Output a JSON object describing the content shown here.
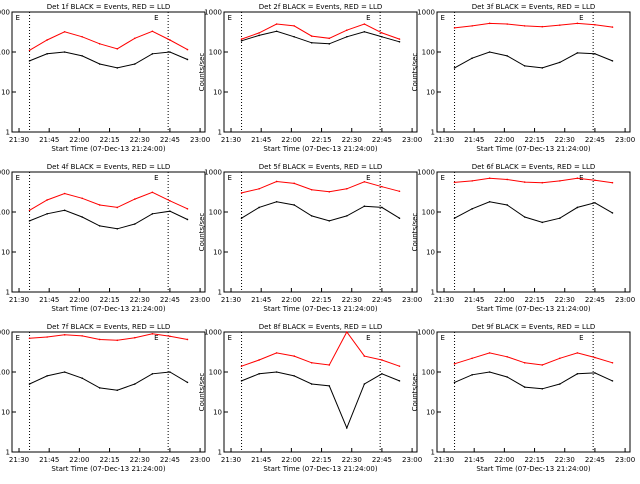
{
  "chart_data": [
    {
      "type": "line",
      "title": "Det 1f BLACK = Events, RED = LLD",
      "xlabel": "Start Time (07-Dec-13 21:24:00)",
      "ylabel": "Counts/sec",
      "x_ticks": [
        "21:30",
        "21:45",
        "22:00",
        "22:15",
        "22:30",
        "22:45",
        "23:00"
      ],
      "y_ticks": [
        "1",
        "10",
        "100",
        "1000"
      ],
      "y_scale": "log",
      "ylim": [
        1,
        1000
      ],
      "xlim_min": [
        0,
        100
      ],
      "markers": [
        "E",
        "E"
      ],
      "series": [
        {
          "color": "#000000",
          "x": [
            0,
            10,
            20,
            30,
            40,
            50,
            60,
            70,
            80,
            90
          ],
          "y": [
            60,
            90,
            100,
            80,
            50,
            40,
            50,
            90,
            100,
            65
          ]
        },
        {
          "color": "#ff0000",
          "x": [
            0,
            10,
            20,
            30,
            40,
            50,
            60,
            70,
            80,
            90
          ],
          "y": [
            110,
            200,
            320,
            240,
            160,
            120,
            220,
            330,
            200,
            115
          ]
        }
      ]
    },
    {
      "type": "line",
      "title": "Det 2f BLACK = Events, RED = LLD",
      "xlabel": "Start Time (07-Dec-13 21:24:00)",
      "ylabel": "Counts/sec",
      "x_ticks": [
        "21:30",
        "21:45",
        "22:00",
        "22:15",
        "22:30",
        "22:45",
        "23:00"
      ],
      "y_ticks": [
        "1",
        "10",
        "100",
        "1000"
      ],
      "markers": [
        "E",
        "E"
      ],
      "series": [
        {
          "color": "#000000",
          "x": [
            0,
            10,
            20,
            30,
            40,
            50,
            60,
            70,
            80,
            90
          ],
          "y": [
            190,
            260,
            330,
            240,
            170,
            160,
            240,
            320,
            240,
            180
          ]
        },
        {
          "color": "#ff0000",
          "x": [
            0,
            10,
            20,
            30,
            40,
            50,
            60,
            70,
            80,
            90
          ],
          "y": [
            210,
            300,
            500,
            450,
            250,
            220,
            350,
            500,
            300,
            210
          ]
        }
      ]
    },
    {
      "type": "line",
      "title": "Det 3f BLACK = Events, RED = LLD",
      "xlabel": "Start Time (07-Dec-13 21:24:00)",
      "ylabel": "Counts/sec",
      "x_ticks": [
        "21:30",
        "21:45",
        "22:00",
        "22:15",
        "22:30",
        "22:45",
        "23:00"
      ],
      "y_ticks": [
        "1",
        "10",
        "100",
        "1000"
      ],
      "markers": [
        "E",
        "E"
      ],
      "series": [
        {
          "color": "#000000",
          "x": [
            0,
            10,
            20,
            30,
            40,
            50,
            60,
            70,
            80,
            90
          ],
          "y": [
            40,
            70,
            100,
            80,
            45,
            40,
            55,
            95,
            90,
            60
          ]
        },
        {
          "color": "#ff0000",
          "x": [
            0,
            10,
            20,
            30,
            40,
            50,
            60,
            70,
            80,
            90
          ],
          "y": [
            400,
            450,
            520,
            500,
            450,
            430,
            470,
            520,
            480,
            420
          ]
        }
      ]
    },
    {
      "type": "line",
      "title": "Det 4f BLACK = Events, RED = LLD",
      "xlabel": "Start Time (07-Dec-13 21:24:00)",
      "ylabel": "Counts/sec",
      "x_ticks": [
        "21:30",
        "21:45",
        "22:00",
        "22:15",
        "22:30",
        "22:45",
        "23:00"
      ],
      "y_ticks": [
        "1",
        "10",
        "100",
        "1000"
      ],
      "markers": [
        "E",
        "E"
      ],
      "series": [
        {
          "color": "#000000",
          "x": [
            0,
            10,
            20,
            30,
            40,
            50,
            60,
            70,
            80,
            90
          ],
          "y": [
            60,
            90,
            110,
            75,
            45,
            38,
            50,
            90,
            105,
            65
          ]
        },
        {
          "color": "#ff0000",
          "x": [
            0,
            10,
            20,
            30,
            40,
            50,
            60,
            70,
            80,
            90
          ],
          "y": [
            110,
            200,
            290,
            220,
            150,
            130,
            210,
            310,
            190,
            120
          ]
        }
      ]
    },
    {
      "type": "line",
      "title": "Det 5f BLACK = Events, RED = LLD",
      "xlabel": "Start Time (07-Dec-13 21:24:00)",
      "ylabel": "Counts/sec",
      "x_ticks": [
        "21:30",
        "21:45",
        "22:00",
        "22:15",
        "22:30",
        "22:45",
        "23:00"
      ],
      "y_ticks": [
        "1",
        "10",
        "100",
        "1000"
      ],
      "markers": [
        "E",
        "E"
      ],
      "series": [
        {
          "color": "#000000",
          "x": [
            0,
            10,
            20,
            30,
            40,
            50,
            60,
            70,
            80,
            90
          ],
          "y": [
            70,
            130,
            180,
            150,
            80,
            60,
            80,
            140,
            130,
            70
          ]
        },
        {
          "color": "#ff0000",
          "x": [
            0,
            10,
            20,
            30,
            40,
            50,
            60,
            70,
            80,
            90
          ],
          "y": [
            300,
            380,
            580,
            520,
            360,
            320,
            380,
            570,
            430,
            330
          ]
        }
      ]
    },
    {
      "type": "line",
      "title": "Det 6f BLACK = Events, RED = LLD",
      "xlabel": "Start Time (07-Dec-13 21:24:00)",
      "ylabel": "Counts/sec",
      "x_ticks": [
        "21:30",
        "21:45",
        "22:00",
        "22:15",
        "22:30",
        "22:45",
        "23:00"
      ],
      "y_ticks": [
        "1",
        "10",
        "100",
        "1000"
      ],
      "markers": [
        "E",
        "E"
      ],
      "series": [
        {
          "color": "#000000",
          "x": [
            0,
            10,
            20,
            30,
            40,
            50,
            60,
            70,
            80,
            90
          ],
          "y": [
            70,
            120,
            180,
            150,
            75,
            55,
            70,
            130,
            170,
            95
          ]
        },
        {
          "color": "#ff0000",
          "x": [
            0,
            10,
            20,
            30,
            40,
            50,
            60,
            70,
            80,
            90
          ],
          "y": [
            550,
            600,
            700,
            650,
            560,
            540,
            600,
            700,
            620,
            540
          ]
        }
      ]
    },
    {
      "type": "line",
      "title": "Det 7f BLACK = Events, RED = LLD",
      "xlabel": "Start Time (07-Dec-13 21:24:00)",
      "ylabel": "Counts/sec",
      "x_ticks": [
        "21:30",
        "21:45",
        "22:00",
        "22:15",
        "22:30",
        "22:45",
        "23:00"
      ],
      "y_ticks": [
        "1",
        "10",
        "100",
        "1000"
      ],
      "markers": [
        "E",
        "E"
      ],
      "series": [
        {
          "color": "#000000",
          "x": [
            0,
            10,
            20,
            30,
            40,
            50,
            60,
            70,
            80,
            90
          ],
          "y": [
            50,
            80,
            100,
            70,
            40,
            35,
            50,
            90,
            100,
            55
          ]
        },
        {
          "color": "#ff0000",
          "x": [
            0,
            10,
            20,
            30,
            40,
            50,
            60,
            70,
            80,
            90
          ],
          "y": [
            700,
            750,
            850,
            800,
            650,
            620,
            720,
            900,
            780,
            650
          ]
        }
      ]
    },
    {
      "type": "line",
      "title": "Det 8f BLACK = Events, RED = LLD",
      "xlabel": "Start Time (07-Dec-13 21:24:00)",
      "ylabel": "Counts/sec",
      "x_ticks": [
        "21:30",
        "21:45",
        "22:00",
        "22:15",
        "22:30",
        "22:45",
        "23:00"
      ],
      "y_ticks": [
        "1",
        "10",
        "100",
        "1000"
      ],
      "markers": [
        "E",
        "E"
      ],
      "series": [
        {
          "color": "#000000",
          "x": [
            0,
            10,
            20,
            30,
            40,
            50,
            60,
            70,
            80,
            90
          ],
          "y": [
            60,
            90,
            100,
            80,
            50,
            45,
            4,
            50,
            90,
            60
          ]
        },
        {
          "color": "#ff0000",
          "x": [
            0,
            10,
            20,
            30,
            40,
            50,
            60,
            70,
            80,
            90
          ],
          "y": [
            140,
            200,
            300,
            250,
            170,
            150,
            1000,
            250,
            200,
            140
          ]
        }
      ]
    },
    {
      "type": "line",
      "title": "Det 9f BLACK = Events, RED = LLD",
      "xlabel": "Start Time (07-Dec-13 21:24:00)",
      "ylabel": "Counts/sec",
      "x_ticks": [
        "21:30",
        "21:45",
        "22:00",
        "22:15",
        "22:30",
        "22:45",
        "23:00"
      ],
      "y_ticks": [
        "1",
        "10",
        "100",
        "1000"
      ],
      "markers": [
        "E",
        "E"
      ],
      "series": [
        {
          "color": "#000000",
          "x": [
            0,
            10,
            20,
            30,
            40,
            50,
            60,
            70,
            80,
            90
          ],
          "y": [
            55,
            85,
            100,
            75,
            42,
            38,
            50,
            90,
            95,
            60
          ]
        },
        {
          "color": "#ff0000",
          "x": [
            0,
            10,
            20,
            30,
            40,
            50,
            60,
            70,
            80,
            90
          ],
          "y": [
            160,
            220,
            300,
            240,
            170,
            150,
            220,
            300,
            230,
            170
          ]
        }
      ]
    }
  ]
}
